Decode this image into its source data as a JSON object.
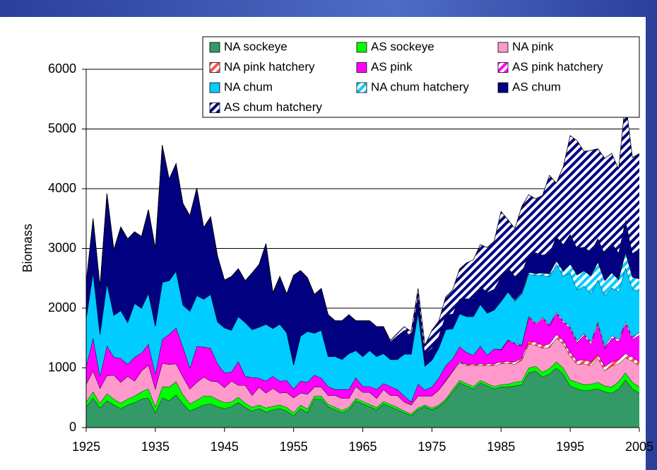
{
  "chart_data": {
    "type": "stacked-area",
    "y_label": "Biomass",
    "xlim": [
      1925,
      2005
    ],
    "xticks": [
      1925,
      1935,
      1945,
      1955,
      1965,
      1975,
      1985,
      1995,
      2005
    ],
    "ylim": [
      0,
      6000
    ],
    "yticks": [
      0,
      1000,
      2000,
      3000,
      4000,
      5000,
      6000
    ],
    "grid": true,
    "x": [
      1925,
      1926,
      1927,
      1928,
      1929,
      1930,
      1931,
      1932,
      1933,
      1934,
      1935,
      1936,
      1937,
      1938,
      1939,
      1940,
      1941,
      1942,
      1943,
      1944,
      1945,
      1946,
      1947,
      1948,
      1949,
      1950,
      1951,
      1952,
      1953,
      1954,
      1955,
      1956,
      1957,
      1958,
      1959,
      1960,
      1961,
      1962,
      1963,
      1964,
      1965,
      1966,
      1967,
      1968,
      1969,
      1970,
      1971,
      1972,
      1973,
      1974,
      1975,
      1976,
      1977,
      1978,
      1979,
      1980,
      1981,
      1982,
      1983,
      1984,
      1985,
      1986,
      1987,
      1988,
      1989,
      1990,
      1991,
      1992,
      1993,
      1994,
      1995,
      1996,
      1997,
      1998,
      1999,
      2000,
      2001,
      2002,
      2003,
      2004,
      2005
    ],
    "series": [
      {
        "name": "NA sockeye",
        "color": "#339966",
        "hatched": false,
        "values": [
          350,
          500,
          330,
          450,
          380,
          320,
          380,
          420,
          480,
          500,
          250,
          500,
          450,
          550,
          400,
          280,
          330,
          380,
          400,
          350,
          320,
          350,
          420,
          340,
          280,
          320,
          260,
          300,
          320,
          280,
          200,
          320,
          250,
          480,
          480,
          350,
          300,
          250,
          300,
          450,
          400,
          350,
          300,
          400,
          350,
          300,
          250,
          200,
          300,
          350,
          300,
          350,
          450,
          600,
          750,
          700,
          650,
          750,
          700,
          650,
          680,
          680,
          700,
          720,
          920,
          950,
          850,
          900,
          1000,
          900,
          700,
          650,
          620,
          630,
          650,
          600,
          580,
          650,
          800,
          650,
          580
        ]
      },
      {
        "name": "AS sockeye",
        "color": "#00ff00",
        "hatched": false,
        "values": [
          80,
          100,
          80,
          120,
          100,
          90,
          100,
          110,
          120,
          150,
          100,
          180,
          230,
          220,
          150,
          120,
          130,
          150,
          130,
          120,
          100,
          80,
          90,
          70,
          60,
          60,
          70,
          60,
          60,
          60,
          50,
          60,
          60,
          50,
          50,
          40,
          40,
          40,
          40,
          40,
          40,
          40,
          40,
          40,
          40,
          40,
          30,
          30,
          30,
          30,
          30,
          30,
          30,
          40,
          40,
          40,
          40,
          40,
          40,
          40,
          40,
          50,
          60,
          60,
          80,
          80,
          80,
          90,
          100,
          100,
          100,
          110,
          100,
          100,
          110,
          100,
          100,
          120,
          120,
          110,
          100
        ]
      },
      {
        "name": "NA pink",
        "color": "#ff99cc",
        "hatched": false,
        "values": [
          300,
          350,
          250,
          300,
          400,
          350,
          380,
          250,
          350,
          400,
          300,
          400,
          380,
          300,
          300,
          250,
          300,
          320,
          250,
          300,
          250,
          350,
          200,
          300,
          200,
          300,
          250,
          300,
          200,
          250,
          250,
          200,
          250,
          150,
          150,
          150,
          200,
          200,
          150,
          200,
          150,
          200,
          150,
          200,
          150,
          200,
          150,
          150,
          200,
          150,
          200,
          250,
          300,
          300,
          300,
          300,
          350,
          250,
          300,
          350,
          350,
          350,
          300,
          350,
          400,
          350,
          400,
          350,
          400,
          400,
          400,
          300,
          350,
          300,
          400,
          250,
          350,
          300,
          250,
          350,
          350
        ]
      },
      {
        "name": "NA pink hatchery",
        "color": "#ff5050",
        "hatched": true,
        "values": [
          0,
          0,
          0,
          0,
          0,
          0,
          0,
          0,
          0,
          0,
          0,
          0,
          0,
          0,
          0,
          0,
          0,
          0,
          0,
          0,
          0,
          0,
          0,
          0,
          0,
          0,
          0,
          0,
          0,
          0,
          0,
          0,
          0,
          0,
          0,
          0,
          0,
          0,
          0,
          0,
          0,
          0,
          0,
          0,
          0,
          0,
          0,
          0,
          0,
          0,
          0,
          5,
          10,
          15,
          15,
          20,
          20,
          25,
          25,
          30,
          30,
          30,
          40,
          40,
          50,
          50,
          50,
          60,
          60,
          60,
          60,
          60,
          70,
          70,
          70,
          70,
          70,
          70,
          70,
          70,
          70
        ]
      },
      {
        "name": "AS pink",
        "color": "#ff00ff",
        "hatched": false,
        "values": [
          300,
          550,
          200,
          500,
          300,
          400,
          200,
          400,
          300,
          350,
          250,
          400,
          500,
          600,
          500,
          350,
          600,
          500,
          550,
          300,
          250,
          150,
          400,
          150,
          300,
          150,
          200,
          200,
          200,
          200,
          150,
          200,
          200,
          200,
          150,
          150,
          100,
          150,
          150,
          150,
          100,
          100,
          150,
          100,
          150,
          100,
          100,
          50,
          200,
          100,
          150,
          200,
          250,
          200,
          250,
          200,
          150,
          300,
          150,
          250,
          200,
          350,
          300,
          200,
          400,
          300,
          450,
          300,
          350,
          300,
          400,
          300,
          400,
          300,
          500,
          300,
          400,
          300,
          500,
          300,
          450
        ]
      },
      {
        "name": "AS pink hatchery",
        "color": "#ff00ff",
        "hatched": true,
        "values": [
          0,
          0,
          0,
          0,
          0,
          0,
          0,
          0,
          0,
          0,
          0,
          0,
          0,
          0,
          0,
          0,
          0,
          0,
          0,
          0,
          0,
          0,
          0,
          0,
          0,
          0,
          0,
          0,
          0,
          0,
          0,
          0,
          0,
          0,
          0,
          0,
          0,
          0,
          0,
          0,
          0,
          0,
          0,
          0,
          0,
          0,
          0,
          0,
          0,
          0,
          0,
          0,
          0,
          0,
          0,
          0,
          0,
          0,
          0,
          0,
          10,
          10,
          15,
          15,
          20,
          20,
          20,
          25,
          25,
          30,
          30,
          35,
          35,
          40,
          40,
          40,
          40,
          40,
          40,
          40,
          40
        ]
      },
      {
        "name": "NA chum",
        "color": "#00ccff",
        "hatched": false,
        "values": [
          800,
          1100,
          700,
          1050,
          700,
          800,
          700,
          900,
          750,
          850,
          800,
          950,
          900,
          950,
          700,
          950,
          850,
          800,
          900,
          700,
          750,
          700,
          750,
          900,
          800,
          850,
          950,
          800,
          950,
          800,
          400,
          750,
          850,
          700,
          800,
          500,
          550,
          500,
          600,
          450,
          500,
          600,
          550,
          500,
          450,
          500,
          700,
          800,
          1200,
          400,
          450,
          500,
          600,
          500,
          550,
          600,
          650,
          700,
          700,
          650,
          800,
          800,
          700,
          850,
          700,
          800,
          700,
          800,
          800,
          750,
          900,
          850,
          800,
          800,
          700,
          850,
          800,
          800,
          900,
          800,
          700
        ]
      },
      {
        "name": "NA chum hatchery",
        "color": "#00ccff",
        "hatched": true,
        "values": [
          0,
          0,
          0,
          0,
          0,
          0,
          0,
          0,
          0,
          0,
          0,
          0,
          0,
          0,
          0,
          0,
          0,
          0,
          0,
          0,
          0,
          0,
          0,
          0,
          0,
          0,
          0,
          0,
          0,
          0,
          0,
          0,
          0,
          0,
          0,
          0,
          0,
          0,
          0,
          0,
          0,
          0,
          0,
          0,
          0,
          0,
          0,
          0,
          0,
          0,
          0,
          0,
          0,
          0,
          0,
          0,
          0,
          0,
          0,
          0,
          10,
          10,
          20,
          20,
          30,
          30,
          40,
          50,
          60,
          80,
          150,
          250,
          250,
          300,
          300,
          250,
          250,
          200,
          250,
          200,
          200
        ]
      },
      {
        "name": "AS chum",
        "color": "#000080",
        "hatched": false,
        "values": [
          600,
          900,
          800,
          1500,
          1100,
          1400,
          1400,
          1200,
          1200,
          1400,
          1300,
          2300,
          1700,
          1800,
          1700,
          1600,
          1800,
          1200,
          1300,
          1100,
          800,
          900,
          800,
          700,
          950,
          1050,
          1350,
          600,
          800,
          650,
          1500,
          1100,
          900,
          650,
          700,
          700,
          600,
          650,
          650,
          500,
          600,
          500,
          500,
          450,
          300,
          400,
          400,
          300,
          300,
          200,
          200,
          200,
          250,
          250,
          250,
          300,
          300,
          300,
          350,
          350,
          400,
          400,
          400,
          350,
          300,
          350,
          300,
          350,
          400,
          450,
          500,
          450,
          400,
          400,
          400,
          450,
          500,
          450,
          550,
          400,
          500
        ]
      },
      {
        "name": "AS chum hatchery",
        "color": "#000080",
        "hatched": true,
        "values": [
          0,
          0,
          0,
          0,
          0,
          0,
          0,
          0,
          0,
          0,
          0,
          0,
          0,
          0,
          0,
          0,
          0,
          0,
          0,
          0,
          0,
          0,
          0,
          0,
          0,
          0,
          0,
          0,
          0,
          0,
          0,
          0,
          0,
          0,
          0,
          0,
          0,
          0,
          0,
          0,
          0,
          0,
          0,
          0,
          20,
          40,
          60,
          80,
          100,
          150,
          300,
          250,
          300,
          400,
          500,
          600,
          650,
          700,
          750,
          800,
          1100,
          800,
          800,
          1100,
          1000,
          900,
          1000,
          1300,
          900,
          1300,
          1650,
          1800,
          1600,
          1700,
          1500,
          1600,
          1500,
          1400,
          2000,
          1600,
          1600
        ]
      }
    ]
  }
}
